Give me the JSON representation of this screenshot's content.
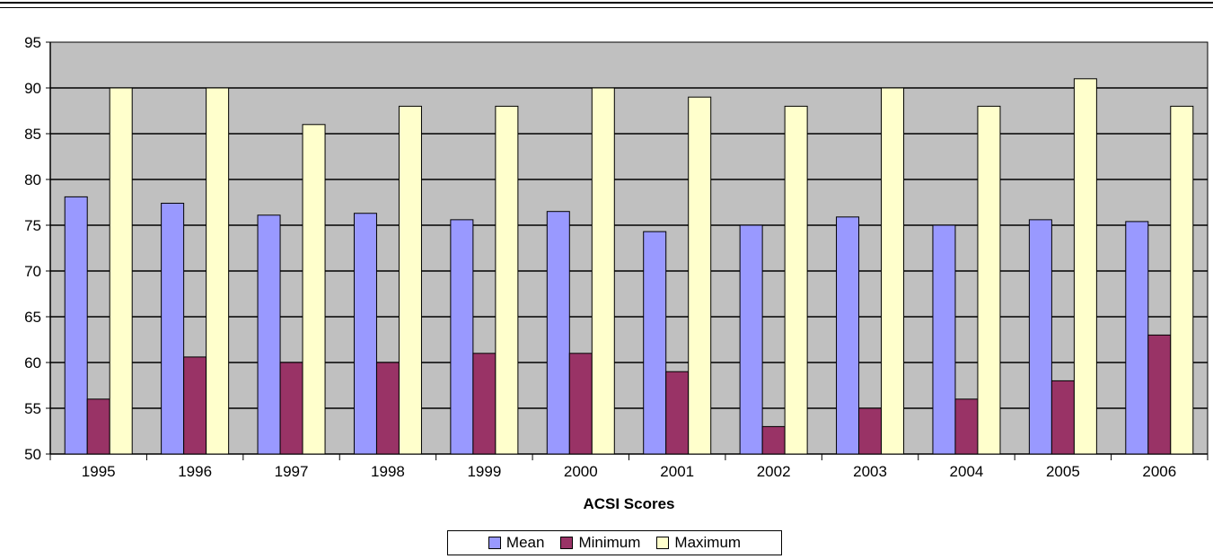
{
  "chart_data": {
    "type": "bar",
    "title": "",
    "xlabel": "ACSI Scores",
    "ylabel": "",
    "ylim": [
      50,
      95
    ],
    "yticks": [
      50,
      55,
      60,
      65,
      70,
      75,
      80,
      85,
      90,
      95
    ],
    "grid": true,
    "legend_position": "bottom",
    "categories": [
      "1995",
      "1996",
      "1997",
      "1998",
      "1999",
      "2000",
      "2001",
      "2002",
      "2003",
      "2004",
      "2005",
      "2006"
    ],
    "series": [
      {
        "name": "Mean",
        "color": "#9999ff",
        "values": [
          78.1,
          77.4,
          76.1,
          76.3,
          75.6,
          76.5,
          74.3,
          75.0,
          75.9,
          75.0,
          75.6,
          75.4
        ]
      },
      {
        "name": "Minimum",
        "color": "#993366",
        "values": [
          56,
          60.6,
          60,
          60,
          61,
          61,
          59,
          53,
          55,
          56,
          58,
          63
        ]
      },
      {
        "name": "Maximum",
        "color": "#ffffcc",
        "values": [
          90,
          90,
          86,
          88,
          88,
          90,
          89,
          88,
          90,
          88,
          91,
          88
        ]
      }
    ],
    "plot_background": "#c0c0c0"
  }
}
